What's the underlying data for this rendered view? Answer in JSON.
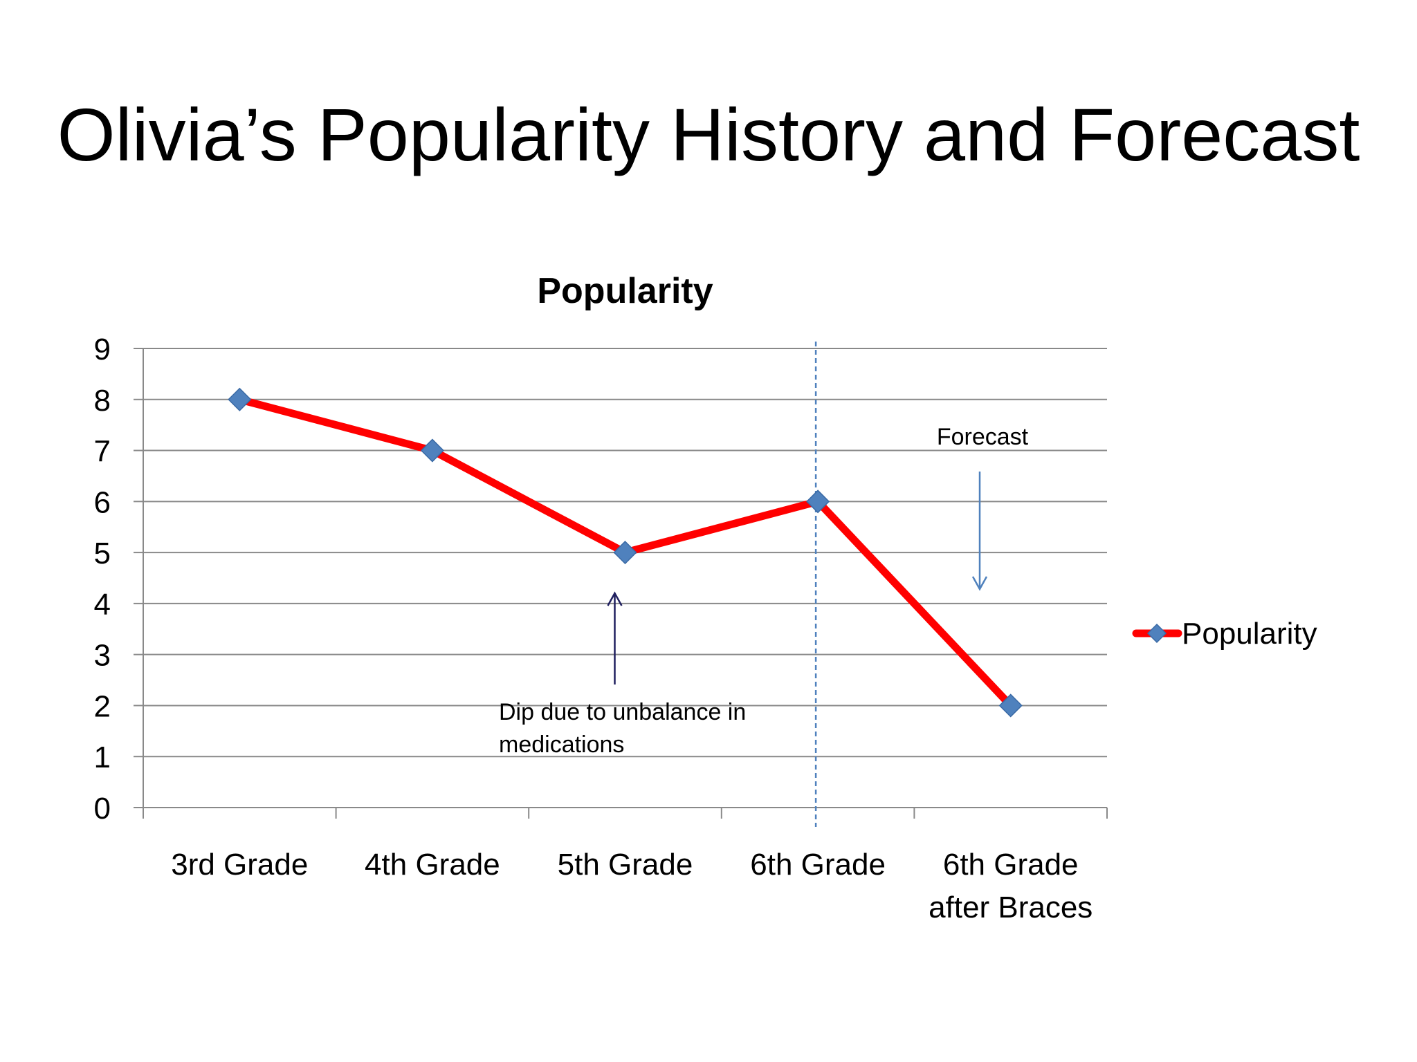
{
  "slide": {
    "title": "Olivia’s Popularity History and Forecast"
  },
  "chart_data": {
    "type": "line",
    "title": "Popularity",
    "xlabel": "",
    "ylabel": "",
    "categories": [
      [
        "3rd Grade"
      ],
      [
        "4th Grade"
      ],
      [
        "5th Grade"
      ],
      [
        "6th Grade"
      ],
      [
        "6th Grade",
        "after Braces"
      ]
    ],
    "series": [
      {
        "name": "Popularity",
        "values": [
          8,
          7,
          5,
          6,
          2
        ],
        "line_color": "#ff0000",
        "marker": "diamond",
        "marker_color": "#4f81bd"
      }
    ],
    "ylim": [
      0,
      9
    ],
    "yticks": [
      "0",
      "1",
      "2",
      "3",
      "4",
      "5",
      "6",
      "7",
      "8",
      "9"
    ],
    "grid": true,
    "legend": "right",
    "forecast_divider_after_category": 3,
    "annotations": [
      {
        "lines": [
          "Dip due to unbalance in",
          "medications"
        ],
        "points_to_category": 2,
        "arrow": "up",
        "arrow_color": "#1f1f5f"
      },
      {
        "lines": [
          "Forecast"
        ],
        "arrow": "down",
        "arrow_color": "#4f81bd"
      }
    ],
    "colors": {
      "grid": "#898989",
      "axis": "#898989",
      "divider": "#4f81bd"
    }
  }
}
